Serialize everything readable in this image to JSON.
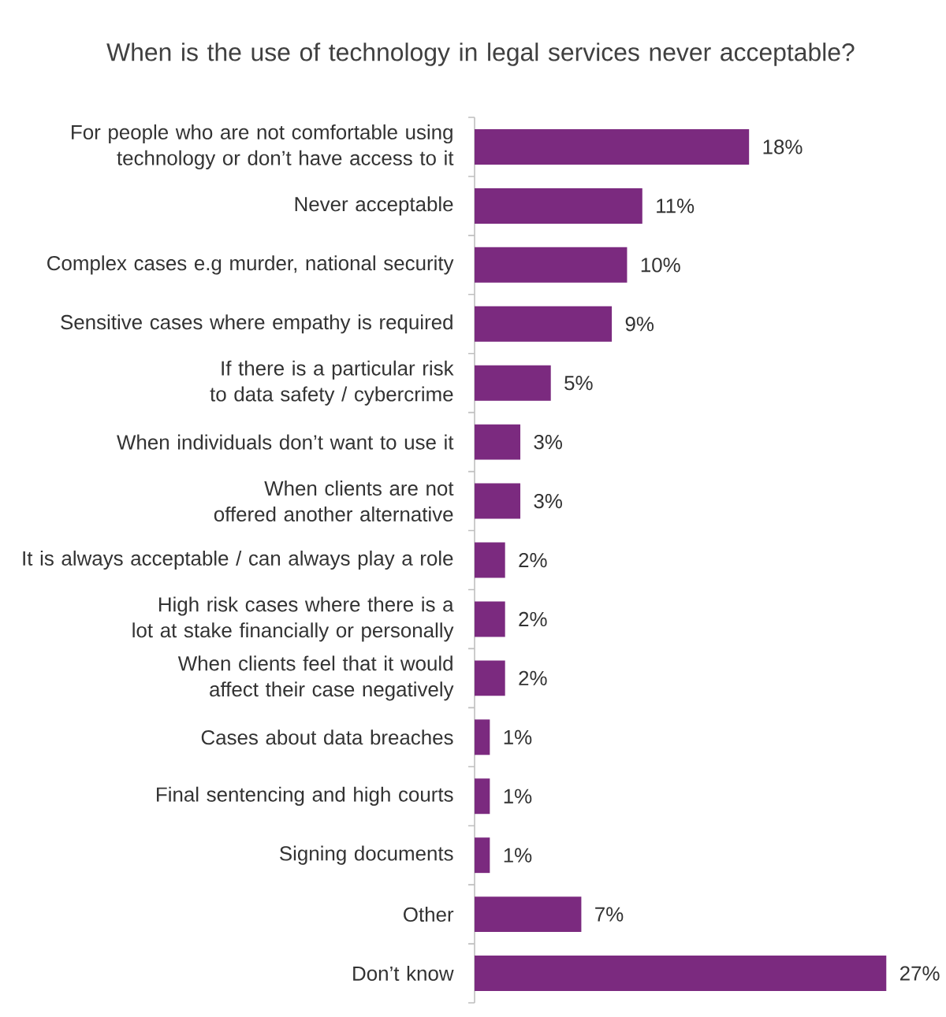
{
  "chart_data": {
    "type": "bar",
    "orientation": "horizontal",
    "title": "When is the use of technology in legal services never acceptable?",
    "categories": [
      "For people who are not comfortable using technology or don’t have access to it",
      "Never acceptable",
      "Complex cases e.g murder, national security",
      "Sensitive cases where empathy is required",
      "If there is a particular risk to data safety / cybercrime",
      "When individuals don’t want to use it",
      "When clients are not offered another alternative",
      "It is always acceptable / can always play a role",
      "High risk cases where there is a lot at stake financially or personally",
      "When clients feel that it would affect their case negatively",
      "Cases about data breaches",
      "Final sentencing and high courts",
      "Signing documents",
      "Other",
      "Don’t know"
    ],
    "values": [
      18,
      11,
      10,
      9,
      5,
      3,
      3,
      2,
      2,
      2,
      1,
      1,
      1,
      7,
      27
    ],
    "value_labels": [
      "18%",
      "11%",
      "10%",
      "9%",
      "5%",
      "3%",
      "3%",
      "2%",
      "2%",
      "2%",
      "1%",
      "1%",
      "1%",
      "7%",
      "27%"
    ],
    "color": "#7b2a7f"
  }
}
